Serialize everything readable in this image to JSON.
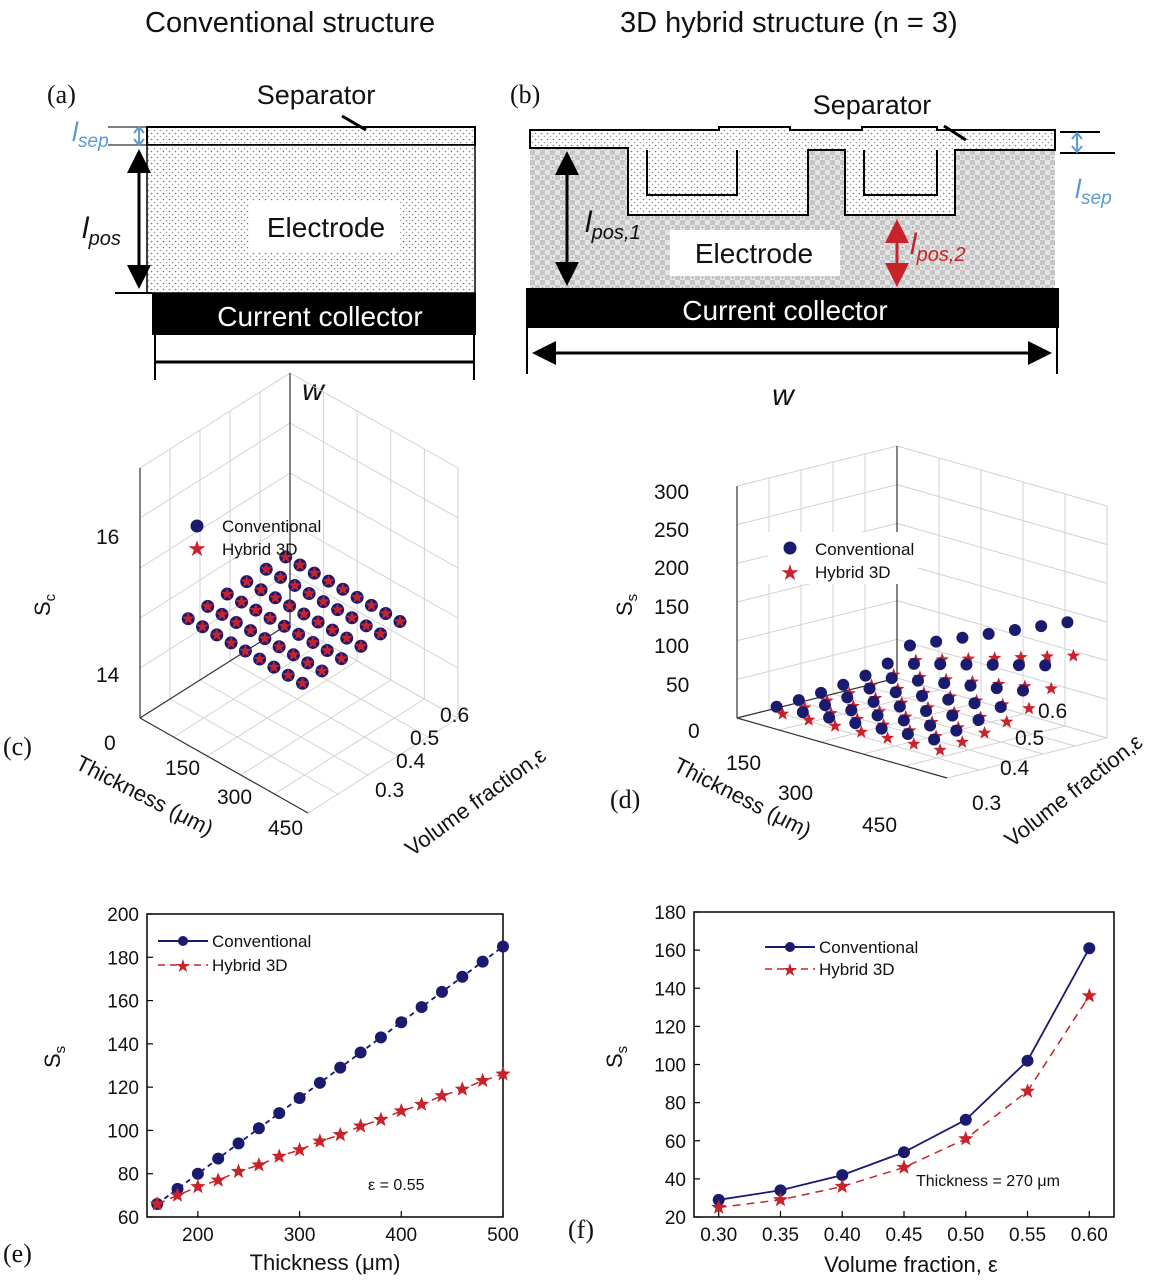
{
  "headers": {
    "left": "Conventional structure",
    "right": "3D hybrid structure (n = 3)"
  },
  "panel_labels": {
    "a": "(a)",
    "b": "(b)",
    "c": "(c)",
    "d": "(d)",
    "e": "(e)",
    "f": "(f)"
  },
  "diagram_a": {
    "separator": "Separator",
    "l_sep": "l",
    "l_sep_sub": "sep",
    "l_pos": "l",
    "l_pos_sub": "pos",
    "electrode": "Electrode",
    "collector": "Current collector",
    "width": "w"
  },
  "diagram_b": {
    "separator": "Separator",
    "l_sep": "l",
    "l_sep_sub": "sep",
    "l_pos1": "l",
    "l_pos1_sub": "pos,1",
    "l_pos2": "l",
    "l_pos2_sub": "pos,2",
    "electrode": "Electrode",
    "collector": "Current collector",
    "width": "w"
  },
  "colors": {
    "conventional": "#1a1a6e",
    "hybrid": "#c8232b",
    "l_sep_label": "#5a9bd5",
    "l_pos2_label": "#c8232b"
  },
  "chart_data": [
    {
      "id": "c",
      "type": "scatter",
      "ylabel": "S",
      "ylabel_sub": "c",
      "xlabel": "Thickness (μm)",
      "zlabel": "Volume fraction,ε",
      "thickness_ticks": [
        "0",
        "150",
        "300",
        "450"
      ],
      "volume_ticks": [
        "0.3",
        "0.4",
        "0.5",
        "0.6"
      ],
      "s_ticks": [
        "16",
        "14"
      ],
      "legend": [
        "Conventional",
        "Hybrid 3D"
      ],
      "grid": true,
      "legend_position": "top-left",
      "note": "Both series coincide at constant Sc ≈ 14.9 over the thickness × volume-fraction grid"
    },
    {
      "id": "d",
      "type": "scatter",
      "ylabel": "S",
      "ylabel_sub": "s",
      "xlabel": "Thickness (μm)",
      "zlabel": "Volume fraction,ε",
      "thickness_ticks": [
        "150",
        "300",
        "450"
      ],
      "volume_ticks": [
        "0.3",
        "0.4",
        "0.5",
        "0.6"
      ],
      "s_ticks": [
        "0",
        "50",
        "100",
        "150",
        "200",
        "250",
        "300"
      ],
      "legend": [
        "Conventional",
        "Hybrid 3D"
      ],
      "grid": true,
      "legend_position": "top-left"
    },
    {
      "id": "e",
      "type": "line",
      "xlabel": "Thickness (μm)",
      "ylabel": "S",
      "ylabel_sub": "s",
      "xlim": [
        150,
        500
      ],
      "ylim": [
        60,
        200
      ],
      "xticks": [
        200,
        300,
        400,
        500
      ],
      "yticks": [
        60,
        80,
        100,
        120,
        140,
        160,
        180,
        200
      ],
      "annotation": "ε = 0.55",
      "legend_position": "top-left",
      "x": [
        160,
        180,
        200,
        220,
        240,
        260,
        280,
        300,
        320,
        340,
        360,
        380,
        400,
        420,
        440,
        460,
        480,
        500
      ],
      "series": [
        {
          "name": "Conventional",
          "values": [
            66,
            73,
            80,
            87,
            94,
            101,
            108,
            115,
            122,
            129,
            136,
            143,
            150,
            157,
            164,
            171,
            178,
            185
          ]
        },
        {
          "name": "Hybrid 3D",
          "values": [
            66,
            70,
            74,
            77,
            81,
            84,
            88,
            91,
            95,
            98,
            102,
            105,
            109,
            112,
            116,
            119,
            123,
            126
          ]
        }
      ]
    },
    {
      "id": "f",
      "type": "line",
      "xlabel": "Volume fraction, ε",
      "ylabel": "S",
      "ylabel_sub": "s",
      "xlim": [
        0.28,
        0.62
      ],
      "ylim": [
        20,
        180
      ],
      "xticks": [
        0.3,
        0.35,
        0.4,
        0.45,
        0.5,
        0.55,
        0.6
      ],
      "xtick_labels": [
        "0.30",
        "0.35",
        "0.40",
        "0.45",
        "0.50",
        "0.55",
        "0.60"
      ],
      "yticks": [
        20,
        40,
        60,
        80,
        100,
        120,
        140,
        160,
        180
      ],
      "annotation": "Thickness = 270 μm",
      "legend_position": "top-left",
      "x": [
        0.3,
        0.35,
        0.4,
        0.45,
        0.5,
        0.55,
        0.6
      ],
      "series": [
        {
          "name": "Conventional",
          "values": [
            29,
            34,
            42,
            54,
            71,
            102,
            161
          ]
        },
        {
          "name": "Hybrid 3D",
          "values": [
            25,
            29,
            36,
            46,
            61,
            86,
            136
          ]
        }
      ]
    }
  ]
}
